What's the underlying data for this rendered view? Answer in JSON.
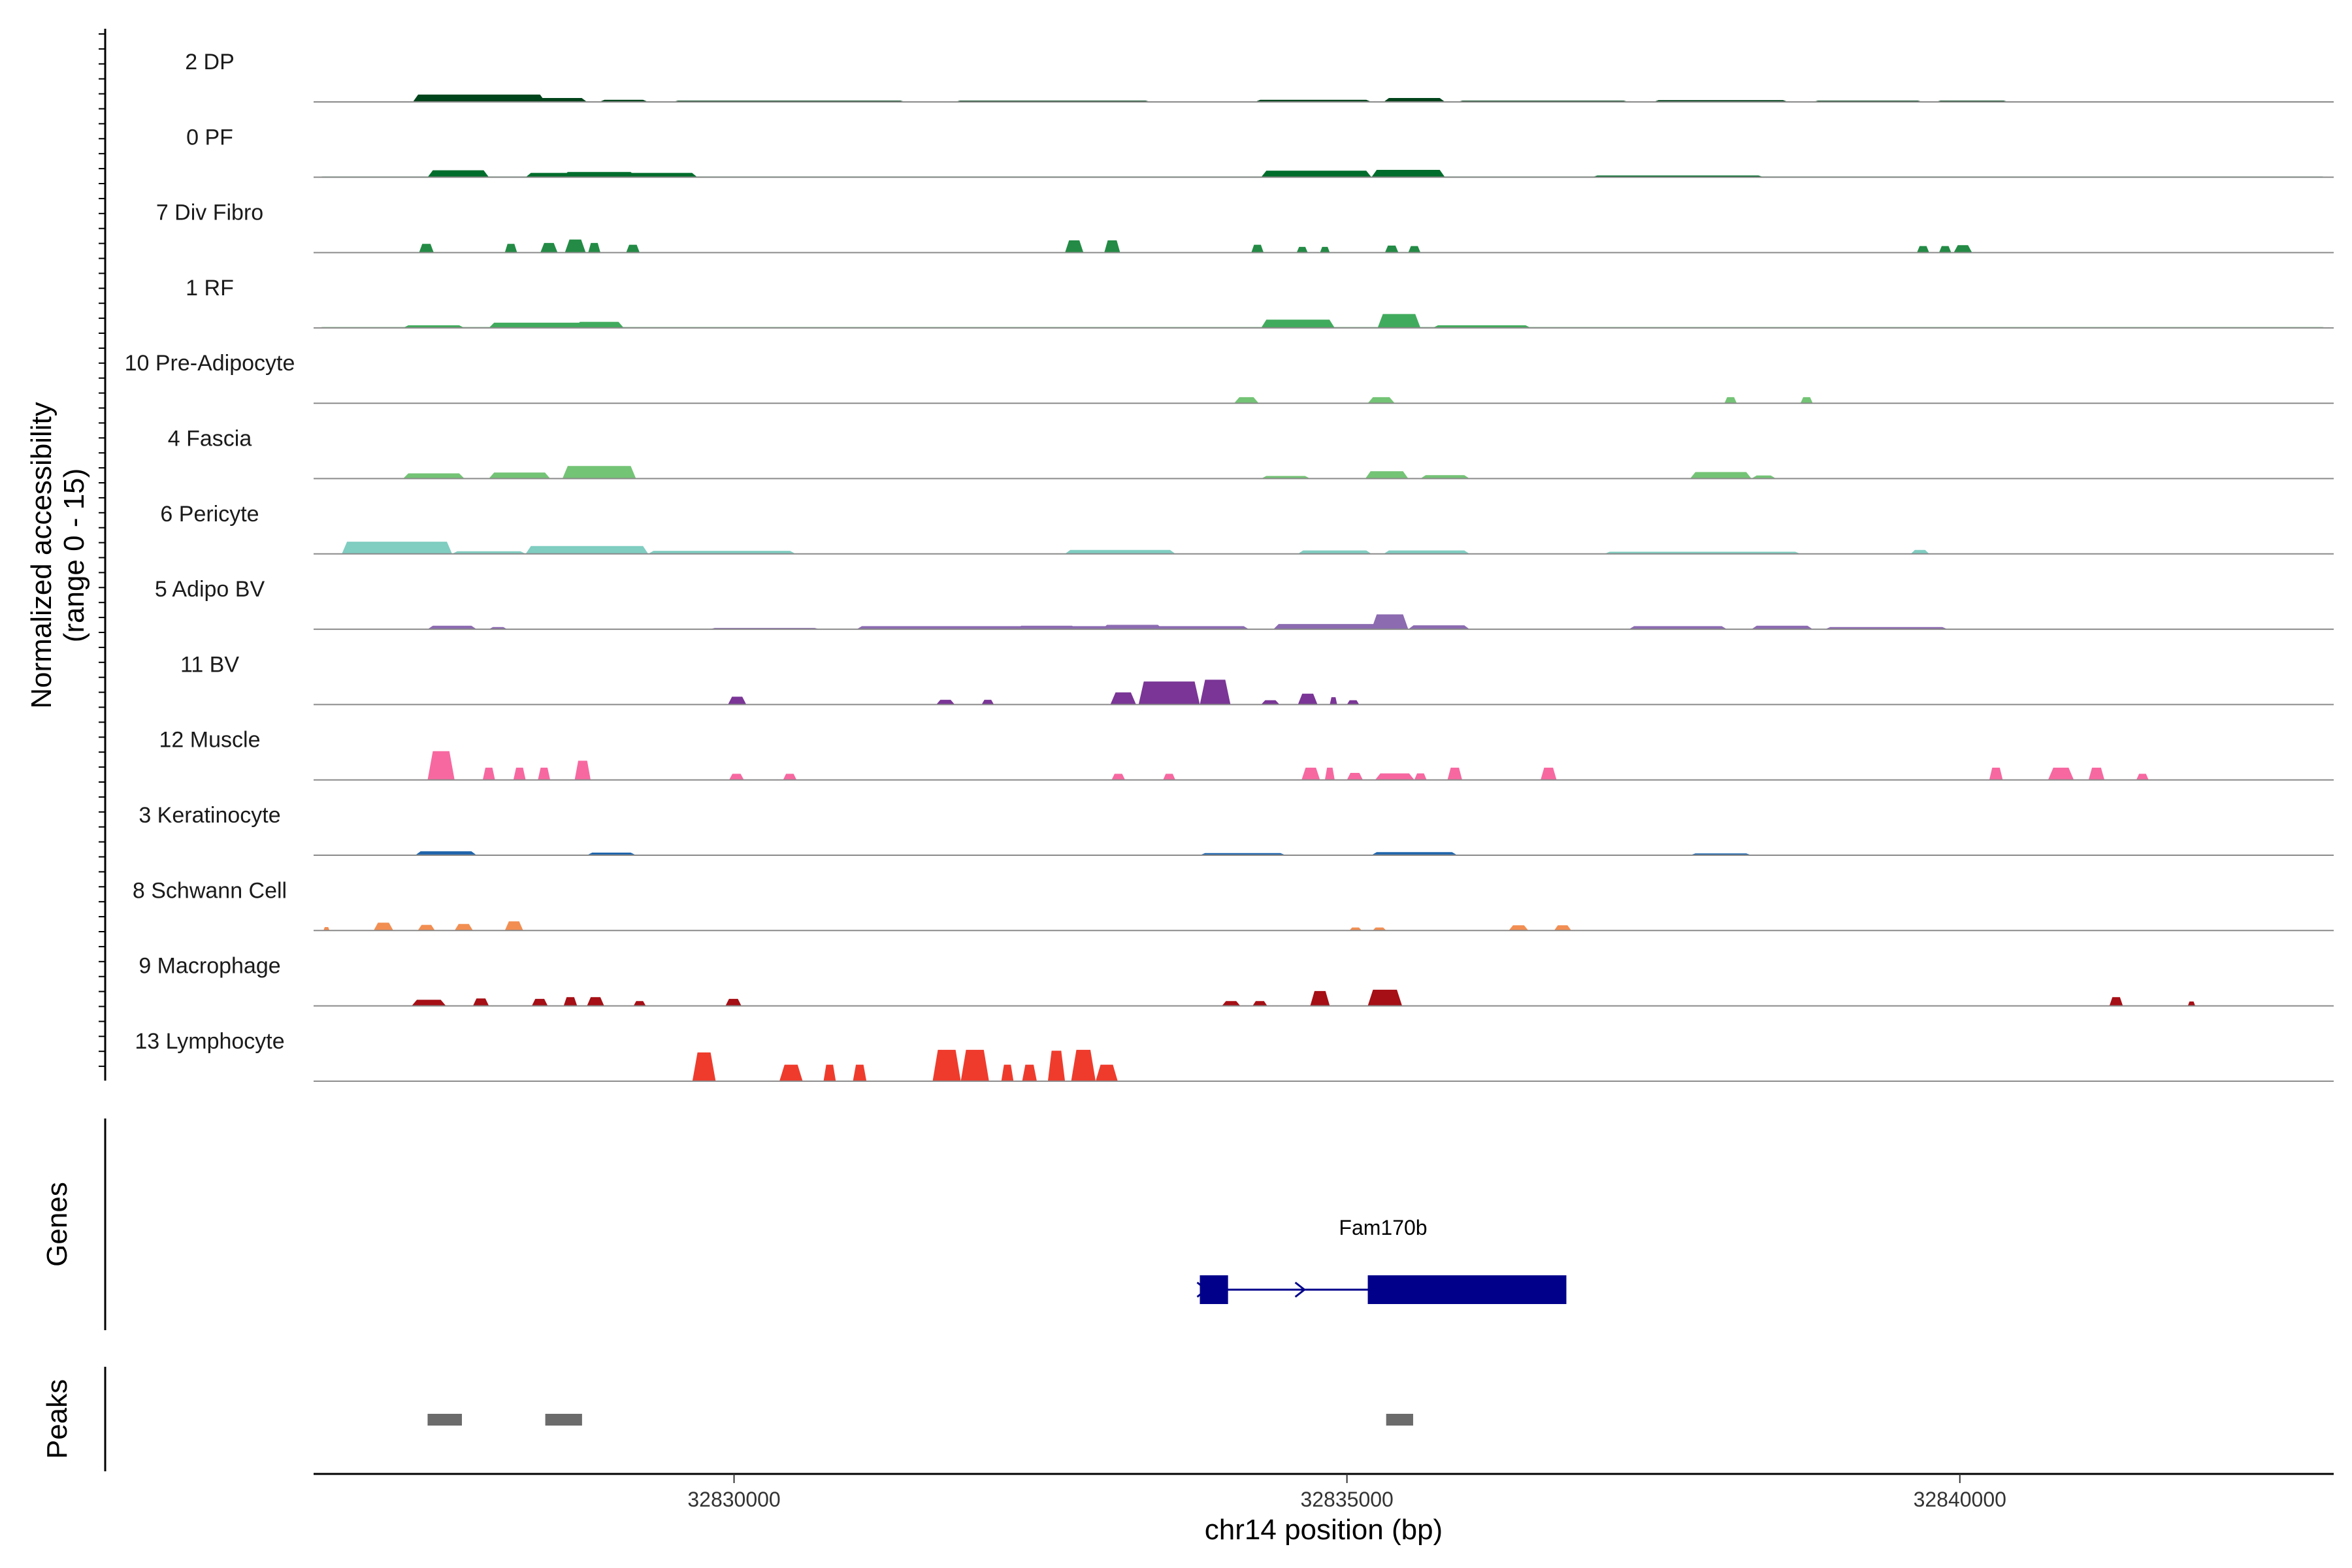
{
  "chart_data": {
    "type": "area",
    "title": "",
    "xlabel": "chr14 position (bp)",
    "ylabel": "Normalized accessibility",
    "ylabel_range": "(range 0 - 15)",
    "xlim": [
      32826570,
      32843050
    ],
    "ylim": [
      0,
      15
    ],
    "x_ticks": [
      32830000,
      32835000,
      32840000
    ],
    "x_tick_labels": [
      "32830000",
      "32835000",
      "32840000"
    ],
    "tracks": [
      {
        "name": "2 DP",
        "color": "#00441b",
        "peaks": [
          [
            32827380,
            32828460,
            1.7
          ],
          [
            32827700,
            32828800,
            0.9
          ],
          [
            32828900,
            32829300,
            0.5
          ],
          [
            32829500,
            32831400,
            0.3
          ],
          [
            32831800,
            32833400,
            0.3
          ],
          [
            32834250,
            32835200,
            0.5
          ],
          [
            32835300,
            32835800,
            0.9
          ],
          [
            32835900,
            32837300,
            0.3
          ],
          [
            32837500,
            32838600,
            0.4
          ],
          [
            32838800,
            32839700,
            0.3
          ],
          [
            32839800,
            32840400,
            0.3
          ]
        ]
      },
      {
        "name": "0 PF",
        "color": "#006d2c",
        "peaks": [
          [
            32826600,
            32843000,
            0.15
          ],
          [
            32827500,
            32828000,
            1.6
          ],
          [
            32828300,
            32829700,
            1.0
          ],
          [
            32828600,
            32829200,
            1.2
          ],
          [
            32834300,
            32835200,
            1.5
          ],
          [
            32835200,
            32835800,
            1.7
          ],
          [
            32837000,
            32838400,
            0.4
          ]
        ]
      },
      {
        "name": "7 Div Fibro",
        "color": "#238b45",
        "peaks": [
          [
            32827430,
            32827550,
            2.0
          ],
          [
            32828130,
            32828230,
            2.0
          ],
          [
            32828420,
            32828560,
            2.2
          ],
          [
            32828620,
            32828790,
            3.0
          ],
          [
            32828810,
            32828910,
            2.2
          ],
          [
            32829120,
            32829230,
            1.8
          ],
          [
            32832700,
            32832850,
            2.8
          ],
          [
            32833020,
            32833150,
            2.8
          ],
          [
            32834220,
            32834320,
            1.8
          ],
          [
            32834590,
            32834680,
            1.3
          ],
          [
            32834780,
            32834860,
            1.3
          ],
          [
            32835310,
            32835420,
            1.6
          ],
          [
            32835500,
            32835600,
            1.5
          ],
          [
            32839650,
            32839750,
            1.5
          ],
          [
            32839830,
            32839930,
            1.5
          ],
          [
            32839950,
            32840100,
            1.7
          ]
        ]
      },
      {
        "name": "1 RF",
        "color": "#41ab5d",
        "peaks": [
          [
            32826600,
            32843000,
            0.2
          ],
          [
            32827300,
            32827800,
            0.6
          ],
          [
            32828000,
            32829000,
            1.2
          ],
          [
            32828700,
            32829100,
            1.4
          ],
          [
            32834300,
            32834900,
            1.9
          ],
          [
            32835250,
            32835600,
            3.2
          ],
          [
            32835700,
            32836500,
            0.6
          ]
        ]
      },
      {
        "name": "10 Pre-Adipocyte",
        "color": "#74c476",
        "peaks": [
          [
            32834080,
            32834280,
            1.4
          ],
          [
            32835170,
            32835390,
            1.4
          ],
          [
            32838080,
            32838180,
            1.4
          ],
          [
            32838700,
            32838800,
            1.4
          ]
        ]
      },
      {
        "name": "4 Fascia",
        "color": "#74c476",
        "peaks": [
          [
            32826600,
            32843000,
            0.1
          ],
          [
            32827300,
            32827800,
            1.2
          ],
          [
            32828000,
            32828500,
            1.4
          ],
          [
            32828600,
            32829200,
            2.9
          ],
          [
            32834300,
            32834700,
            0.6
          ],
          [
            32835150,
            32835500,
            1.7
          ],
          [
            32835600,
            32836000,
            0.8
          ],
          [
            32837800,
            32838300,
            1.5
          ],
          [
            32838300,
            32838500,
            0.7
          ]
        ]
      },
      {
        "name": "6 Pericyte",
        "color": "#80cdc1",
        "peaks": [
          [
            32826600,
            32843000,
            0.1
          ],
          [
            32826800,
            32827700,
            2.8
          ],
          [
            32827700,
            32828300,
            0.6
          ],
          [
            32828300,
            32829300,
            1.8
          ],
          [
            32829300,
            32830500,
            0.7
          ],
          [
            32832700,
            32833600,
            0.9
          ],
          [
            32834600,
            32835200,
            0.8
          ],
          [
            32835300,
            32836000,
            0.8
          ],
          [
            32837100,
            32838700,
            0.5
          ],
          [
            32839600,
            32839750,
            0.9
          ]
        ]
      },
      {
        "name": "5 Adipo BV",
        "color": "#8c6bb1",
        "peaks": [
          [
            32827500,
            32827900,
            0.8
          ],
          [
            32828000,
            32828150,
            0.5
          ],
          [
            32829800,
            32830700,
            0.3
          ],
          [
            32831000,
            32834200,
            0.7
          ],
          [
            32832300,
            32832800,
            0.8
          ],
          [
            32833000,
            32833500,
            1.0
          ],
          [
            32834400,
            32835400,
            1.2
          ],
          [
            32835200,
            32835500,
            3.4
          ],
          [
            32835500,
            32836000,
            0.9
          ],
          [
            32837300,
            32838100,
            0.7
          ],
          [
            32838300,
            32838800,
            0.8
          ],
          [
            32838900,
            32839900,
            0.5
          ]
        ]
      },
      {
        "name": "11 BV",
        "color": "#7a3596",
        "peaks": [
          [
            32829950,
            32830100,
            1.8
          ],
          [
            32831650,
            32831800,
            1.1
          ],
          [
            32832020,
            32832120,
            1.1
          ],
          [
            32833070,
            32833280,
            2.8
          ],
          [
            32833300,
            32833800,
            5.3
          ],
          [
            32833800,
            32834050,
            5.7
          ],
          [
            32834300,
            32834450,
            1.0
          ],
          [
            32834600,
            32834760,
            2.5
          ],
          [
            32834860,
            32834920,
            1.7
          ],
          [
            32835000,
            32835100,
            1.0
          ]
        ]
      },
      {
        "name": "12 Muscle",
        "color": "#f768a1",
        "peaks": [
          [
            32827500,
            32827720,
            6.6
          ],
          [
            32827950,
            32828050,
            2.8
          ],
          [
            32828200,
            32828300,
            2.8
          ],
          [
            32828400,
            32828500,
            2.8
          ],
          [
            32828700,
            32828830,
            4.4
          ],
          [
            32829960,
            32830080,
            1.4
          ],
          [
            32830400,
            32830510,
            1.4
          ],
          [
            32833080,
            32833190,
            1.4
          ],
          [
            32833500,
            32833600,
            1.4
          ],
          [
            32834630,
            32834780,
            2.8
          ],
          [
            32834820,
            32834900,
            2.8
          ],
          [
            32835000,
            32835130,
            1.6
          ],
          [
            32835230,
            32835550,
            1.5
          ],
          [
            32835550,
            32835650,
            1.5
          ],
          [
            32835820,
            32835940,
            2.8
          ],
          [
            32836580,
            32836710,
            2.8
          ],
          [
            32840240,
            32840350,
            2.8
          ],
          [
            32840720,
            32840930,
            2.8
          ],
          [
            32841050,
            32841180,
            2.8
          ],
          [
            32841440,
            32841540,
            1.4
          ]
        ]
      },
      {
        "name": "3 Keratinocyte",
        "color": "#2166ac",
        "peaks": [
          [
            32826600,
            32843000,
            0.15
          ],
          [
            32827400,
            32827900,
            0.9
          ],
          [
            32828800,
            32829200,
            0.6
          ],
          [
            32833800,
            32834500,
            0.5
          ],
          [
            32835200,
            32835900,
            0.7
          ],
          [
            32837800,
            32838300,
            0.4
          ]
        ]
      },
      {
        "name": "8 Schwann Cell",
        "color": "#f28e52",
        "peaks": [
          [
            32826650,
            32826700,
            0.8
          ],
          [
            32827060,
            32827220,
            1.8
          ],
          [
            32827420,
            32827560,
            1.3
          ],
          [
            32827720,
            32827870,
            1.5
          ],
          [
            32828130,
            32828280,
            2.1
          ],
          [
            32835020,
            32835120,
            0.7
          ],
          [
            32835210,
            32835320,
            0.7
          ],
          [
            32836320,
            32836480,
            1.2
          ],
          [
            32836690,
            32836830,
            1.2
          ]
        ]
      },
      {
        "name": "9 Macrophage",
        "color": "#a50f15",
        "peaks": [
          [
            32827370,
            32827650,
            1.4
          ],
          [
            32827870,
            32828000,
            1.7
          ],
          [
            32828350,
            32828480,
            1.6
          ],
          [
            32828610,
            32828720,
            2.0
          ],
          [
            32828800,
            32828940,
            2.0
          ],
          [
            32829180,
            32829280,
            1.1
          ],
          [
            32829930,
            32830060,
            1.6
          ],
          [
            32833980,
            32834130,
            1.1
          ],
          [
            32834230,
            32834350,
            1.1
          ],
          [
            32834700,
            32834860,
            3.4
          ],
          [
            32835170,
            32835450,
            3.7
          ],
          [
            32841220,
            32841330,
            2.0
          ],
          [
            32841860,
            32841920,
            1.0
          ]
        ]
      },
      {
        "name": "13 Lymphocyte",
        "color": "#ef3b2c",
        "peaks": [
          [
            32829660,
            32829850,
            6.6
          ],
          [
            32830370,
            32830560,
            3.8
          ],
          [
            32830730,
            32830830,
            3.8
          ],
          [
            32830970,
            32831080,
            3.8
          ],
          [
            32831620,
            32831850,
            7.2
          ],
          [
            32831850,
            32832080,
            7.2
          ],
          [
            32832180,
            32832280,
            3.8
          ],
          [
            32832350,
            32832470,
            3.8
          ],
          [
            32832560,
            32832700,
            7.0
          ],
          [
            32832750,
            32832950,
            7.2
          ],
          [
            32832950,
            32833130,
            3.8
          ]
        ]
      }
    ],
    "genes": [
      {
        "name": "Fam170b",
        "strand": "+",
        "start": 32833800,
        "end": 32836790,
        "exons": [
          [
            32833800,
            32834030
          ],
          [
            32835170,
            32836790
          ]
        ],
        "color": "#00008b"
      }
    ],
    "peaks_track": [
      [
        32827500,
        32827780
      ],
      [
        32828460,
        32828760
      ],
      [
        32835320,
        32835540
      ]
    ],
    "peaks_color": "#6b6b6b",
    "panel_titles": {
      "genes": "Genes",
      "peaks": "Peaks"
    }
  }
}
